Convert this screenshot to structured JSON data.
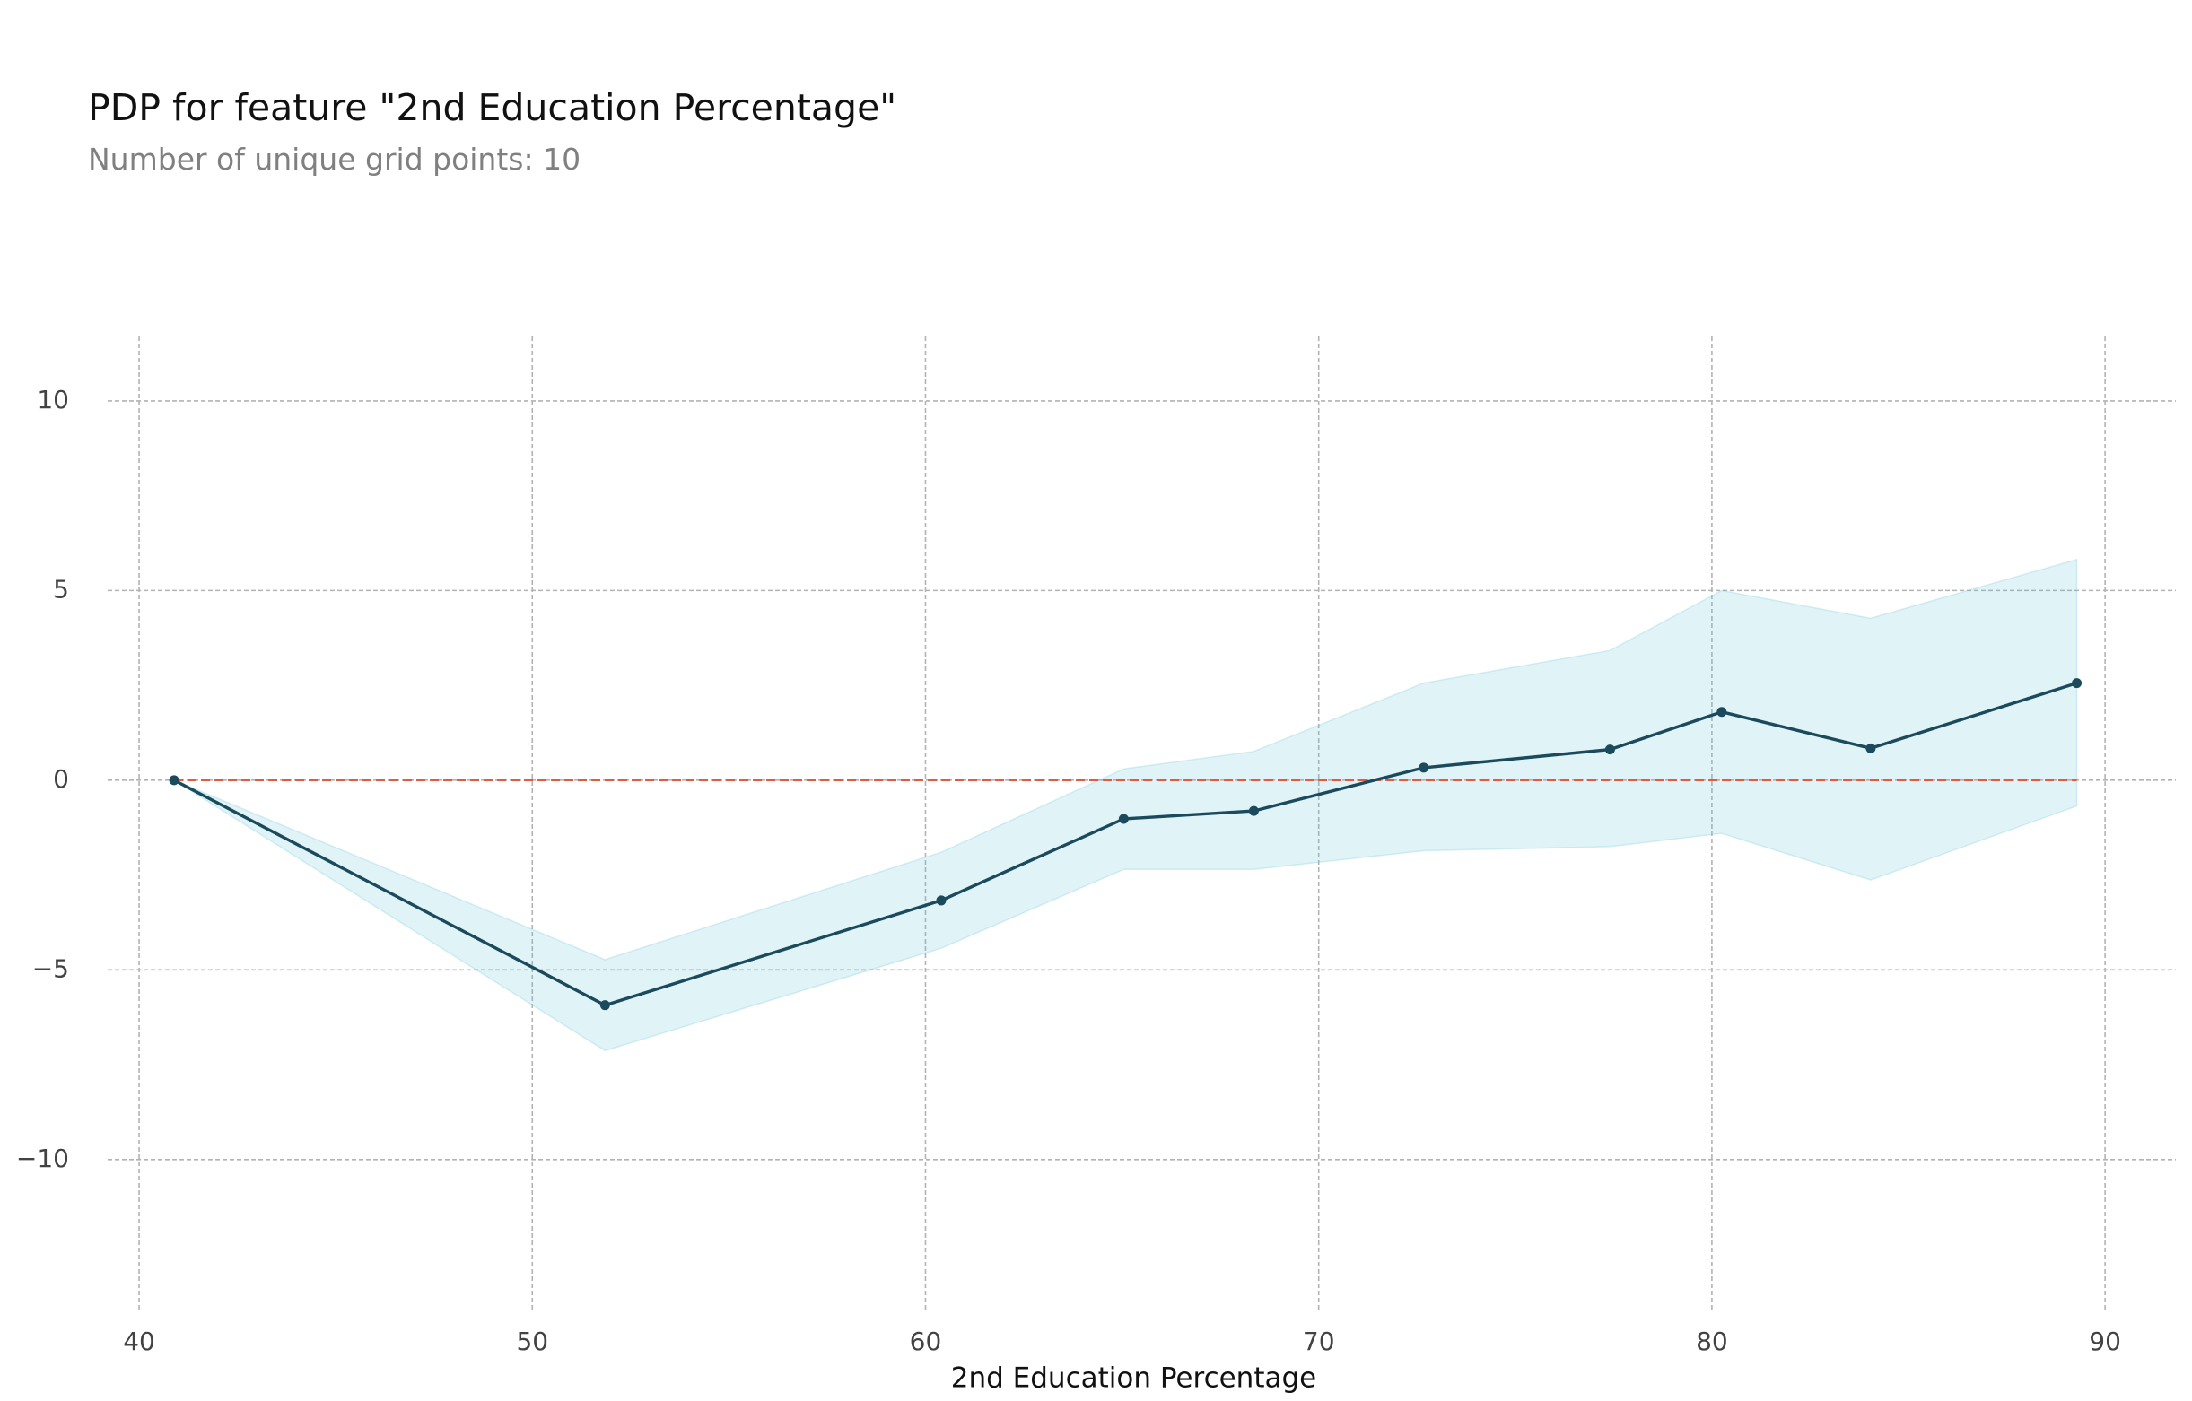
{
  "title": "PDP for feature \"2nd Education Percentage\"",
  "subtitle": "Number of unique grid points: 10",
  "chart_data": {
    "type": "line",
    "xlabel": "2nd Education Percentage",
    "ylabel": "",
    "xlim": [
      39.2,
      91.8
    ],
    "ylim": [
      -14.0,
      11.7
    ],
    "xticks": [
      40,
      50,
      60,
      70,
      80,
      90
    ],
    "yticks": [
      10,
      5,
      0,
      -5,
      -10
    ],
    "xtick_labels": [
      "40",
      "50",
      "60",
      "70",
      "80",
      "90"
    ],
    "ytick_labels": [
      "10",
      "5",
      "0",
      "−5",
      "−10"
    ],
    "grid": true,
    "x": [
      40.89,
      51.85,
      60.4,
      65.04,
      68.35,
      72.67,
      77.41,
      80.25,
      84.04,
      89.28
    ],
    "series": [
      {
        "values": [
          0.0,
          -5.93,
          -3.17,
          -1.02,
          -0.81,
          0.33,
          0.81,
          1.8,
          0.84,
          2.56
        ],
        "color": "#1a4a5c"
      }
    ],
    "band": {
      "lower": [
        0.0,
        -7.13,
        -4.43,
        -2.35,
        -2.35,
        -1.86,
        -1.75,
        -1.4,
        -2.63,
        -0.68
      ],
      "upper": [
        0.0,
        -4.73,
        -1.9,
        0.3,
        0.76,
        2.56,
        3.42,
        5.0,
        4.27,
        5.82
      ],
      "color": "#66c2d7",
      "opacity": 0.2
    },
    "baseline": {
      "value": 0,
      "color": "#e15b43",
      "style": "dashed"
    }
  }
}
